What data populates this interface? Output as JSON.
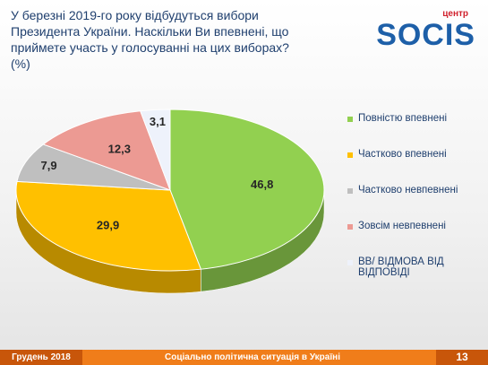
{
  "slide": {
    "logo_small": "центр",
    "logo": "SOCIS",
    "footer_left": "Грудень 2018",
    "footer_center": "Соціально політична ситуація в Україні",
    "page_number": "13"
  },
  "chart_data": {
    "type": "pie3d",
    "title": "У березні 2019-го року відбудуться вибори Президента України. Наскільки Ви впевнені, що приймете участь у голосуванні на цих виборах? (%)",
    "categories": [
      "Повністю впевнені",
      "Частково впевнені",
      "Частково невпевнені",
      "Зовсім невпевнені",
      "ВВ/ ВІДМОВА ВІД ВІДПОВІДІ"
    ],
    "values": [
      46.8,
      29.9,
      7.9,
      12.3,
      3.1
    ],
    "value_labels": [
      "46,8",
      "29,9",
      "7,9",
      "12,3",
      "3,1"
    ],
    "colors": [
      "#92d050",
      "#ffc000",
      "#bfbfbf",
      "#ec9a93",
      "#eef2fb"
    ],
    "legend": "right"
  }
}
